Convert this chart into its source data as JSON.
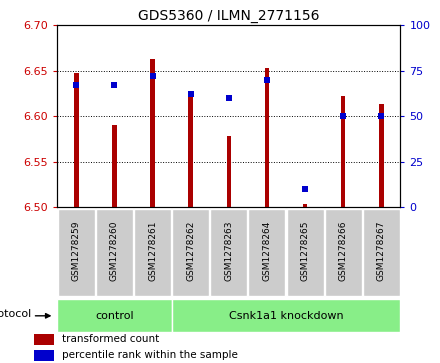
{
  "title": "GDS5360 / ILMN_2771156",
  "samples": [
    "GSM1278259",
    "GSM1278260",
    "GSM1278261",
    "GSM1278262",
    "GSM1278263",
    "GSM1278264",
    "GSM1278265",
    "GSM1278266",
    "GSM1278267"
  ],
  "red_values": [
    6.648,
    6.59,
    6.663,
    6.628,
    6.578,
    6.653,
    6.503,
    6.622,
    6.613
  ],
  "blue_values_pct": [
    67,
    67,
    72,
    62,
    60,
    70,
    10,
    50,
    50
  ],
  "ylim": [
    6.5,
    6.7
  ],
  "y2lim": [
    0,
    100
  ],
  "yticks": [
    6.5,
    6.55,
    6.6,
    6.65,
    6.7
  ],
  "y2ticks": [
    0,
    25,
    50,
    75,
    100
  ],
  "bar_width": 0.12,
  "red_color": "#aa0000",
  "blue_color": "#0000cc",
  "control_samples": 3,
  "group_labels": [
    "control",
    "Csnk1a1 knockdown"
  ],
  "group_color": "#88ee88",
  "protocol_label": "protocol",
  "legend_red": "transformed count",
  "legend_blue": "percentile rank within the sample",
  "tick_label_color_left": "#cc0000",
  "tick_label_color_right": "#0000cc",
  "base": 6.5,
  "gray_box_color": "#cccccc"
}
